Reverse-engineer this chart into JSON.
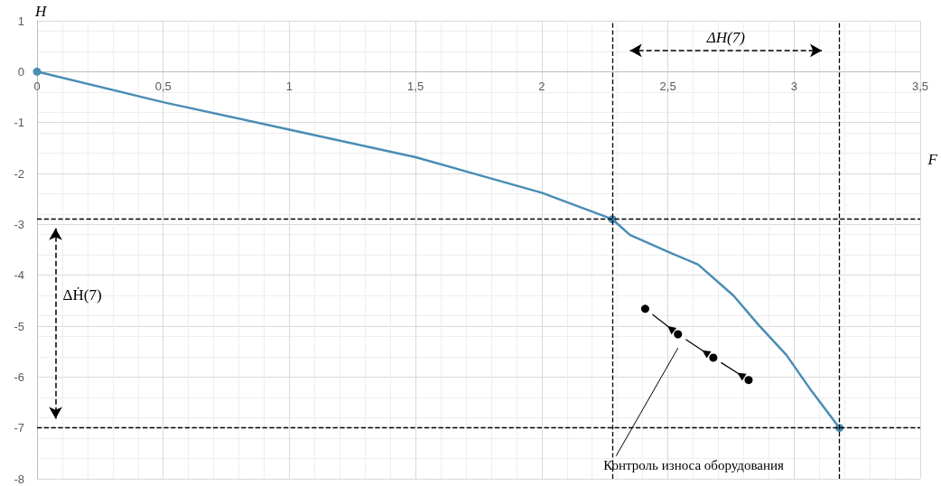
{
  "chart_data": {
    "type": "line",
    "xlabel": "F",
    "ylabel": "H",
    "xlim": [
      0,
      3.5
    ],
    "xticks": [
      0,
      {
        "value": 0.5,
        "label": "0,5"
      },
      1,
      {
        "value": 1.5,
        "label": "1,5"
      },
      2,
      {
        "value": 2.5,
        "label": "2,5"
      },
      3,
      {
        "value": 3.5,
        "label": "3,5"
      }
    ],
    "ylim": [
      -8,
      1
    ],
    "yticks": [
      -8,
      -7,
      -6,
      -5,
      -4,
      -3,
      -2,
      -1,
      0,
      1
    ],
    "grid": true,
    "marker": "none",
    "line_style": "solid",
    "series": [
      {
        "color": "#4a8db5",
        "x": [
          0,
          0.5,
          1,
          1.5,
          2,
          2.28,
          2.35,
          2.51,
          2.62,
          2.76,
          2.86,
          2.97,
          3.07,
          3.18
        ],
        "values": [
          0,
          -0.6,
          -1.14,
          -1.68,
          -2.38,
          -2.9,
          -3.21,
          -3.56,
          -3.79,
          -4.4,
          -4.98,
          -5.57,
          -6.28,
          -7.0
        ]
      },
      {
        "type": "scatter",
        "color": "#4a8db5",
        "marker": "circle",
        "x": [
          0,
          2.28,
          3.18
        ],
        "values": [
          0,
          -2.9,
          -7.0
        ]
      },
      {
        "type": "scatter",
        "color": "#000000",
        "marker": "circle",
        "x": [
          2.41,
          2.54,
          2.68,
          2.82
        ],
        "values": [
          -4.66,
          -5.16,
          -5.62,
          -6.06
        ]
      }
    ],
    "ref_lines": [
      {
        "axis": "y",
        "value": -2.9,
        "color": "#000000",
        "line_style": "dashed"
      },
      {
        "axis": "y",
        "value": -7.0,
        "color": "#000000",
        "line_style": "dashed"
      },
      {
        "axis": "x",
        "value": 2.28,
        "color": "#000000",
        "line_style": "dashed"
      },
      {
        "axis": "x",
        "value": 3.18,
        "color": "#000000",
        "line_style": "dashed"
      }
    ],
    "annotations": [
      "ΔH(7)",
      "ΔḢ(7)",
      "Контроль износа оборудования"
    ]
  }
}
